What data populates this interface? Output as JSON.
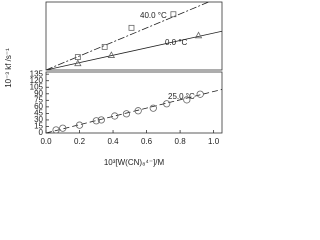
{
  "chart_data": [
    {
      "type": "scatter",
      "xlim": [
        0,
        1.05
      ],
      "ylim": [
        0,
        100
      ],
      "series": [
        {
          "marker": "square",
          "color": "#666666",
          "x": [
            0.19,
            0.35,
            0.51,
            0.76
          ],
          "values": [
            19,
            34,
            62,
            82
          ]
        },
        {
          "marker": "triangle",
          "color": "#666666",
          "x": [
            0.19,
            0.39,
            0.91
          ],
          "values": [
            10,
            22,
            51
          ]
        }
      ],
      "fits": [
        {
          "dash": "7,2,2,2",
          "x": [
            0,
            0.97
          ],
          "values": [
            0,
            100
          ]
        },
        {
          "dash": "none",
          "x": [
            0,
            1.05
          ],
          "values": [
            0,
            57
          ]
        }
      ],
      "annotations": [
        "40.0 °C",
        "0.0 °C"
      ]
    },
    {
      "type": "scatter",
      "title_y": "10⁻³ kf /s⁻¹",
      "x_label": "10³[W(CN)₈⁴⁻]/M",
      "xlim": [
        0,
        1.05
      ],
      "ylim": [
        0,
        140
      ],
      "xticks": [
        {
          "value": 0,
          "label": "0.0"
        },
        {
          "value": 0.2,
          "label": "0.2"
        },
        {
          "value": 0.4,
          "label": "0.4"
        },
        {
          "value": 0.6,
          "label": "0.6"
        },
        {
          "value": 0.8,
          "label": "0.8"
        },
        {
          "value": 1.0,
          "label": "1.0"
        }
      ],
      "yticks": [
        0,
        15,
        30,
        45,
        60,
        75,
        90,
        105,
        120,
        135
      ],
      "series": [
        {
          "marker": "circle",
          "color": "#666666",
          "x": [
            0.06,
            0.1,
            0.2,
            0.3,
            0.33,
            0.41,
            0.48,
            0.55,
            0.64,
            0.72,
            0.84,
            0.92
          ],
          "values": [
            7,
            11,
            18,
            28,
            30,
            39,
            44,
            51,
            57,
            67,
            76,
            89
          ]
        }
      ],
      "fits": [
        {
          "dash": "6,3",
          "x": [
            0,
            1.05
          ],
          "values": [
            0,
            100
          ]
        }
      ],
      "annotations": [
        "25.0 °C"
      ]
    }
  ]
}
